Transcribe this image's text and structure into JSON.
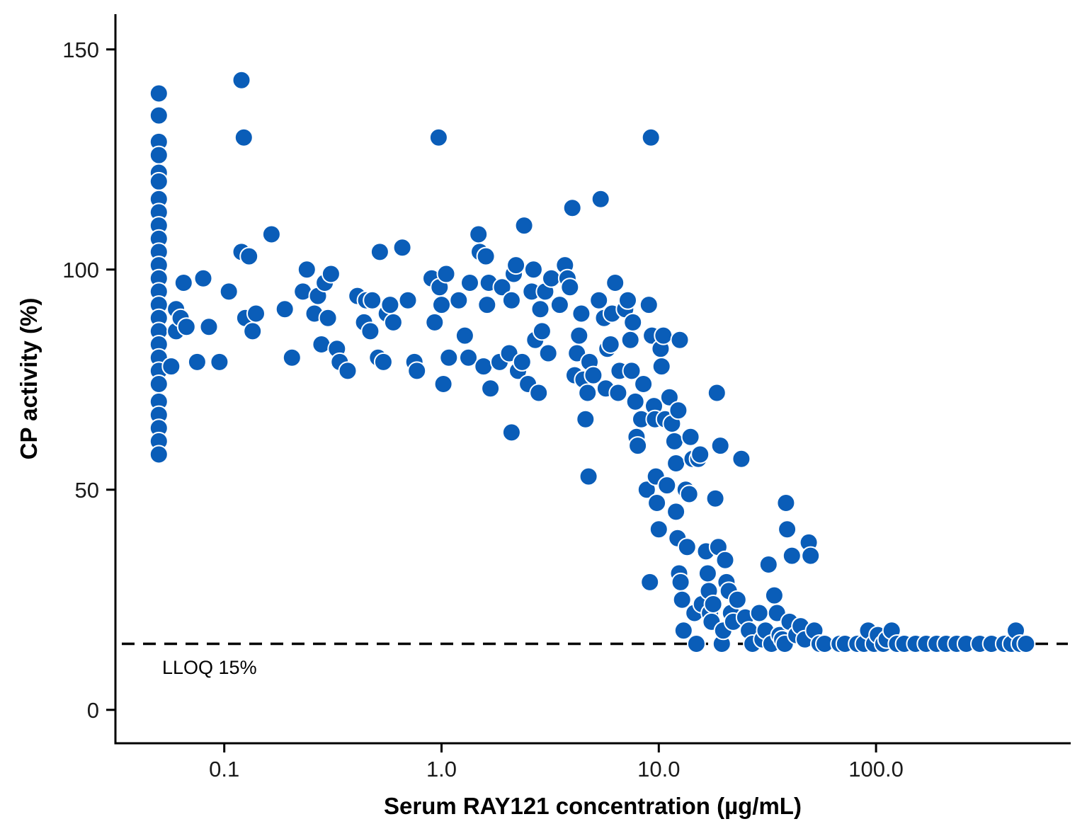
{
  "chart_data": {
    "type": "scatter",
    "title": "",
    "xlabel": "Serum RAY121 concentration (µg/mL)",
    "ylabel": "CP activity (%)",
    "x_scale": "log10",
    "xlim": [
      0.033,
      700
    ],
    "ylim": [
      -7.5,
      158
    ],
    "x_ticks": [
      0.1,
      1.0,
      10.0,
      100.0
    ],
    "x_tick_labels": [
      "0.1",
      "1.0",
      "10.0",
      "100.0"
    ],
    "y_ticks": [
      0,
      50,
      100,
      150
    ],
    "y_tick_labels": [
      "0",
      "50",
      "100",
      "150"
    ],
    "grid": false,
    "legend": "none",
    "point_color": "#0a5db8",
    "point_edge_color": "#ffffff",
    "reference_line": {
      "y": 15,
      "style": "dashed",
      "color": "#000000",
      "label": "LLOQ 15%"
    },
    "series": [
      {
        "points": [
          [
            0.05,
            140
          ],
          [
            0.05,
            135
          ],
          [
            0.05,
            129
          ],
          [
            0.05,
            126
          ],
          [
            0.05,
            122
          ],
          [
            0.05,
            120
          ],
          [
            0.05,
            116
          ],
          [
            0.05,
            113
          ],
          [
            0.05,
            110
          ],
          [
            0.05,
            107
          ],
          [
            0.05,
            104
          ],
          [
            0.05,
            101
          ],
          [
            0.05,
            98
          ],
          [
            0.05,
            95
          ],
          [
            0.05,
            92
          ],
          [
            0.05,
            89
          ],
          [
            0.05,
            86
          ],
          [
            0.05,
            83
          ],
          [
            0.05,
            80
          ],
          [
            0.05,
            77
          ],
          [
            0.05,
            74
          ],
          [
            0.05,
            70
          ],
          [
            0.05,
            67
          ],
          [
            0.05,
            64
          ],
          [
            0.05,
            61
          ],
          [
            0.05,
            58
          ],
          [
            0.057,
            78
          ],
          [
            0.06,
            91
          ],
          [
            0.06,
            86
          ],
          [
            0.063,
            89
          ],
          [
            0.065,
            97
          ],
          [
            0.067,
            87
          ],
          [
            0.075,
            79
          ],
          [
            0.08,
            98
          ],
          [
            0.085,
            87
          ],
          [
            0.095,
            79
          ],
          [
            0.105,
            95
          ],
          [
            0.12,
            143
          ],
          [
            0.12,
            104
          ],
          [
            0.123,
            130
          ],
          [
            0.125,
            89
          ],
          [
            0.13,
            103
          ],
          [
            0.135,
            86
          ],
          [
            0.14,
            90
          ],
          [
            0.165,
            108
          ],
          [
            0.19,
            91
          ],
          [
            0.205,
            80
          ],
          [
            0.23,
            95
          ],
          [
            0.24,
            100
          ],
          [
            0.26,
            90
          ],
          [
            0.27,
            94
          ],
          [
            0.28,
            83
          ],
          [
            0.29,
            97
          ],
          [
            0.3,
            89
          ],
          [
            0.31,
            99
          ],
          [
            0.33,
            82
          ],
          [
            0.34,
            79
          ],
          [
            0.37,
            77
          ],
          [
            0.41,
            94
          ],
          [
            0.44,
            88
          ],
          [
            0.45,
            93
          ],
          [
            0.47,
            86
          ],
          [
            0.48,
            93
          ],
          [
            0.51,
            80
          ],
          [
            0.52,
            104
          ],
          [
            0.54,
            79
          ],
          [
            0.56,
            90
          ],
          [
            0.58,
            92
          ],
          [
            0.6,
            88
          ],
          [
            0.66,
            105
          ],
          [
            0.7,
            93
          ],
          [
            0.75,
            79
          ],
          [
            0.77,
            77
          ],
          [
            0.9,
            98
          ],
          [
            0.93,
            88
          ],
          [
            0.97,
            130
          ],
          [
            0.98,
            96
          ],
          [
            1.0,
            92
          ],
          [
            1.02,
            74
          ],
          [
            1.05,
            99
          ],
          [
            1.08,
            80
          ],
          [
            1.2,
            93
          ],
          [
            1.28,
            85
          ],
          [
            1.33,
            80
          ],
          [
            1.35,
            97
          ],
          [
            1.48,
            108
          ],
          [
            1.5,
            104
          ],
          [
            1.56,
            78
          ],
          [
            1.6,
            103
          ],
          [
            1.62,
            92
          ],
          [
            1.65,
            97
          ],
          [
            1.68,
            73
          ],
          [
            1.85,
            79
          ],
          [
            1.9,
            96
          ],
          [
            2.05,
            81
          ],
          [
            2.1,
            93
          ],
          [
            2.15,
            99
          ],
          [
            2.1,
            63
          ],
          [
            2.2,
            101
          ],
          [
            2.25,
            77
          ],
          [
            2.35,
            79
          ],
          [
            2.4,
            110
          ],
          [
            2.5,
            74
          ],
          [
            2.6,
            95
          ],
          [
            2.65,
            100
          ],
          [
            2.7,
            84
          ],
          [
            2.8,
            72
          ],
          [
            2.85,
            91
          ],
          [
            2.9,
            86
          ],
          [
            3.0,
            95
          ],
          [
            3.1,
            81
          ],
          [
            3.2,
            98
          ],
          [
            3.5,
            92
          ],
          [
            3.7,
            101
          ],
          [
            3.8,
            98
          ],
          [
            3.9,
            96
          ],
          [
            4.0,
            114
          ],
          [
            4.1,
            76
          ],
          [
            4.2,
            81
          ],
          [
            4.3,
            85
          ],
          [
            4.4,
            90
          ],
          [
            4.5,
            75
          ],
          [
            4.6,
            66
          ],
          [
            4.7,
            72
          ],
          [
            4.75,
            53
          ],
          [
            4.8,
            79
          ],
          [
            5.0,
            76
          ],
          [
            5.3,
            93
          ],
          [
            5.4,
            116
          ],
          [
            5.6,
            89
          ],
          [
            5.7,
            73
          ],
          [
            5.8,
            82
          ],
          [
            6.0,
            83
          ],
          [
            6.1,
            90
          ],
          [
            6.3,
            97
          ],
          [
            6.5,
            72
          ],
          [
            6.6,
            77
          ],
          [
            7.0,
            91
          ],
          [
            7.2,
            93
          ],
          [
            7.4,
            84
          ],
          [
            7.5,
            77
          ],
          [
            7.6,
            88
          ],
          [
            7.8,
            70
          ],
          [
            7.9,
            62
          ],
          [
            8.0,
            60
          ],
          [
            8.3,
            66
          ],
          [
            8.5,
            74
          ],
          [
            8.8,
            50
          ],
          [
            9.0,
            92
          ],
          [
            9.1,
            29
          ],
          [
            9.2,
            130
          ],
          [
            9.3,
            85
          ],
          [
            9.5,
            69
          ],
          [
            9.6,
            66
          ],
          [
            9.7,
            53
          ],
          [
            9.8,
            47
          ],
          [
            10.0,
            41
          ],
          [
            10.2,
            82
          ],
          [
            10.3,
            78
          ],
          [
            10.5,
            85
          ],
          [
            10.7,
            66
          ],
          [
            10.9,
            51
          ],
          [
            11.2,
            71
          ],
          [
            11.5,
            65
          ],
          [
            11.8,
            61
          ],
          [
            12.0,
            56
          ],
          [
            12.3,
            68
          ],
          [
            12.5,
            84
          ],
          [
            12.0,
            45
          ],
          [
            12.2,
            39
          ],
          [
            12.4,
            31
          ],
          [
            12.6,
            29
          ],
          [
            12.8,
            25
          ],
          [
            13.0,
            18
          ],
          [
            13.3,
            50
          ],
          [
            13.5,
            37
          ],
          [
            13.8,
            49
          ],
          [
            14.0,
            62
          ],
          [
            14.3,
            57
          ],
          [
            14.6,
            22
          ],
          [
            14.9,
            15
          ],
          [
            15.2,
            57
          ],
          [
            15.5,
            58
          ],
          [
            15.8,
            24
          ],
          [
            16.5,
            36
          ],
          [
            16.8,
            31
          ],
          [
            17.0,
            27
          ],
          [
            17.2,
            22
          ],
          [
            17.5,
            20
          ],
          [
            17.8,
            24
          ],
          [
            18.2,
            48
          ],
          [
            18.5,
            72
          ],
          [
            18.8,
            37
          ],
          [
            19.2,
            60
          ],
          [
            19.5,
            15
          ],
          [
            19.8,
            18
          ],
          [
            20.2,
            34
          ],
          [
            20.5,
            29
          ],
          [
            21.0,
            27
          ],
          [
            21.5,
            22
          ],
          [
            22.0,
            20
          ],
          [
            23.0,
            25
          ],
          [
            24.0,
            57
          ],
          [
            25.0,
            21
          ],
          [
            26.0,
            18
          ],
          [
            27.0,
            15
          ],
          [
            29.0,
            22
          ],
          [
            30.0,
            16
          ],
          [
            31.0,
            18
          ],
          [
            32.0,
            33
          ],
          [
            33.0,
            15
          ],
          [
            34.0,
            26
          ],
          [
            35.0,
            22
          ],
          [
            36.0,
            17
          ],
          [
            37.0,
            16
          ],
          [
            38.0,
            15
          ],
          [
            38.5,
            47
          ],
          [
            39.0,
            41
          ],
          [
            40.0,
            20
          ],
          [
            41.0,
            35
          ],
          [
            43.0,
            17
          ],
          [
            45.0,
            19
          ],
          [
            47.0,
            16
          ],
          [
            49.0,
            38
          ],
          [
            50.0,
            35
          ],
          [
            52.0,
            18
          ],
          [
            55.0,
            15
          ],
          [
            58.0,
            15
          ],
          [
            68.0,
            15
          ],
          [
            72.0,
            15
          ],
          [
            82.0,
            15
          ],
          [
            88.0,
            15
          ],
          [
            92.0,
            18
          ],
          [
            98.0,
            15
          ],
          [
            102.0,
            17
          ],
          [
            108.0,
            15
          ],
          [
            112.0,
            16
          ],
          [
            118.0,
            18
          ],
          [
            125.0,
            15
          ],
          [
            135.0,
            15
          ],
          [
            152.0,
            15
          ],
          [
            170.0,
            15
          ],
          [
            190.0,
            15
          ],
          [
            210.0,
            15
          ],
          [
            235.0,
            15
          ],
          [
            260.0,
            15
          ],
          [
            300.0,
            15
          ],
          [
            340.0,
            15
          ],
          [
            390.0,
            15
          ],
          [
            420.0,
            15
          ],
          [
            440.0,
            18
          ],
          [
            460.0,
            15
          ],
          [
            490.0,
            15
          ]
        ]
      }
    ]
  }
}
